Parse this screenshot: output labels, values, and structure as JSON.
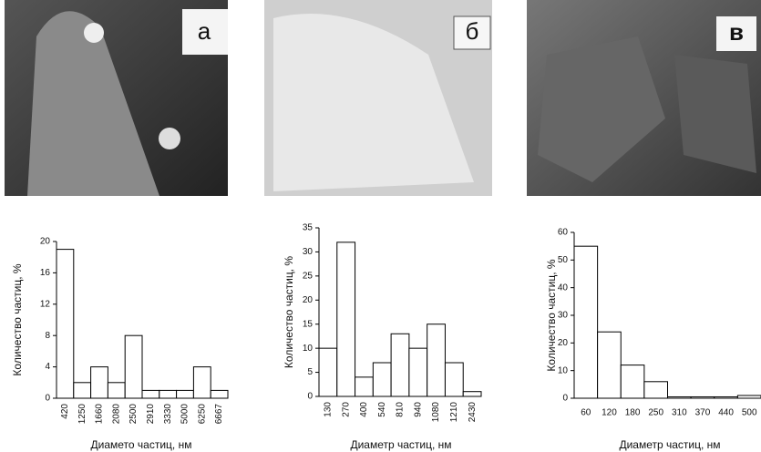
{
  "panels": [
    {
      "label": "а"
    },
    {
      "label": "б"
    },
    {
      "label": "в"
    }
  ],
  "chart_data": [
    {
      "type": "bar",
      "x_label": "Диамето частиц, нм",
      "y_label": "Количество частиц, %",
      "categories": [
        "420",
        "1250",
        "1660",
        "2080",
        "2500",
        "2910",
        "3330",
        "5000",
        "6250",
        "6667"
      ],
      "values": [
        19,
        2,
        4,
        2,
        8,
        1,
        1,
        1,
        4,
        1
      ],
      "color": "#ffffff",
      "ylim": [
        0,
        20
      ],
      "yticks": [
        0,
        4,
        8,
        12,
        16,
        20
      ]
    },
    {
      "type": "bar",
      "x_label": "Диаметр частиц, нм",
      "y_label": "Количество частиц, %",
      "categories": [
        "130",
        "270",
        "400",
        "540",
        "810",
        "940",
        "1080",
        "1210",
        "2430"
      ],
      "values": [
        10,
        32,
        4,
        7,
        13,
        10,
        15,
        7,
        1
      ],
      "color": "#ffffff",
      "ylim": [
        0,
        35
      ],
      "yticks": [
        0,
        5,
        10,
        15,
        20,
        25,
        30,
        35
      ]
    },
    {
      "type": "bar",
      "x_label": "Диаметр частиц, нм",
      "y_label": "Количество частиц, %",
      "categories": [
        "60",
        "120",
        "180",
        "250",
        "310",
        "370",
        "440",
        "500"
      ],
      "values": [
        55,
        24,
        12,
        6,
        0.5,
        0.5,
        0.5,
        1
      ],
      "color": "#ffffff",
      "ylim": [
        0,
        60
      ],
      "yticks": [
        0,
        10,
        20,
        30,
        40,
        50,
        60
      ]
    }
  ]
}
